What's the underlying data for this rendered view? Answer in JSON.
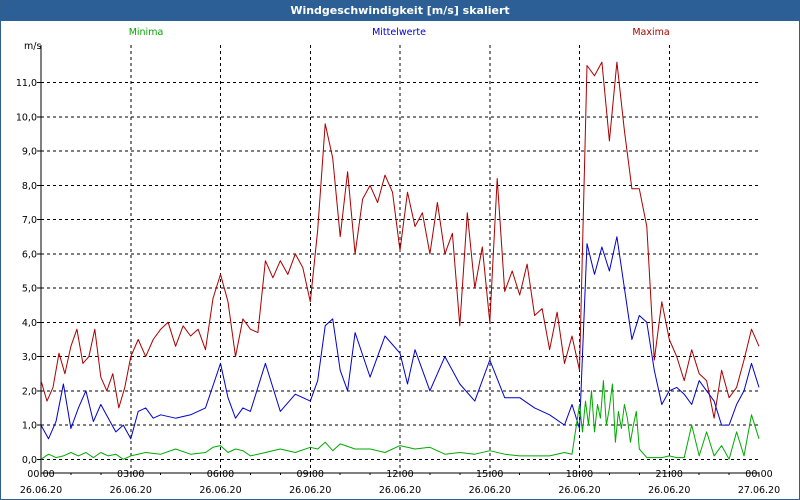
{
  "window": {
    "title": "Windgeschwindigkeit [m/s] skaliert"
  },
  "chart_data": {
    "type": "line",
    "title": "Windgeschwindigkeit [m/s] skaliert",
    "ylabel": "m/s",
    "xlabel": "",
    "ylim": [
      -0.4,
      12.1
    ],
    "xlim": [
      0,
      24
    ],
    "yticks": [
      0.0,
      1.0,
      2.0,
      3.0,
      4.0,
      5.0,
      6.0,
      7.0,
      8.0,
      9.0,
      10.0,
      11.0
    ],
    "ytick_labels": [
      "0,0",
      "1,0",
      "2,0",
      "3,0",
      "4,0",
      "5,0",
      "6,0",
      "7,0",
      "8,0",
      "9,0",
      "10,0",
      "11,0"
    ],
    "xticks": [
      {
        "hour": 0,
        "time": "00:00",
        "date": "26.06.20"
      },
      {
        "hour": 3,
        "time": "03:00",
        "date": "26.06.20"
      },
      {
        "hour": 6,
        "time": "06:00",
        "date": "26.06.20"
      },
      {
        "hour": 9,
        "time": "09:00",
        "date": "26.06.20"
      },
      {
        "hour": 12,
        "time": "12:00",
        "date": "26.06.20"
      },
      {
        "hour": 15,
        "time": "15:00",
        "date": "26.06.20"
      },
      {
        "hour": 18,
        "time": "18:00",
        "date": "26.06.20"
      },
      {
        "hour": 21,
        "time": "21:00",
        "date": "26.06.20"
      },
      {
        "hour": 24,
        "time": "00:00",
        "date": "27.06.20"
      }
    ],
    "grid": true,
    "legend_position": "top",
    "series": [
      {
        "name": "Minima",
        "color": "#00aa00",
        "x": [
          0.0,
          0.25,
          0.5,
          0.75,
          1.0,
          1.25,
          1.5,
          1.75,
          2.0,
          2.25,
          2.5,
          2.75,
          3.0,
          3.5,
          4.0,
          4.5,
          5.0,
          5.5,
          5.75,
          6.0,
          6.25,
          6.5,
          6.75,
          7.0,
          7.5,
          8.0,
          8.5,
          9.0,
          9.25,
          9.5,
          9.75,
          10.0,
          10.5,
          11.0,
          11.5,
          12.0,
          12.5,
          13.0,
          13.5,
          14.0,
          14.5,
          15.0,
          15.5,
          16.0,
          16.5,
          17.0,
          17.5,
          17.75,
          18.0,
          18.1,
          18.2,
          18.3,
          18.4,
          18.5,
          18.6,
          18.7,
          18.8,
          18.9,
          19.0,
          19.1,
          19.2,
          19.3,
          19.4,
          19.5,
          19.6,
          19.7,
          19.8,
          19.9,
          20.0,
          20.25,
          20.5,
          20.75,
          21.0,
          21.25,
          21.5,
          21.75,
          22.0,
          22.25,
          22.5,
          22.75,
          23.0,
          23.25,
          23.5,
          23.75,
          24.0
        ],
        "values": [
          0.0,
          0.15,
          0.05,
          0.1,
          0.2,
          0.1,
          0.2,
          0.05,
          0.2,
          0.1,
          0.15,
          0.0,
          0.1,
          0.2,
          0.15,
          0.3,
          0.15,
          0.2,
          0.35,
          0.4,
          0.2,
          0.3,
          0.25,
          0.1,
          0.2,
          0.3,
          0.2,
          0.35,
          0.3,
          0.5,
          0.25,
          0.45,
          0.3,
          0.3,
          0.2,
          0.4,
          0.3,
          0.35,
          0.15,
          0.2,
          0.15,
          0.25,
          0.15,
          0.1,
          0.1,
          0.1,
          0.2,
          0.15,
          1.6,
          0.8,
          1.7,
          1.0,
          2.0,
          0.8,
          1.6,
          1.2,
          2.3,
          1.0,
          1.5,
          2.2,
          0.5,
          1.4,
          0.9,
          1.6,
          1.2,
          0.5,
          1.0,
          1.4,
          0.3,
          0.05,
          0.05,
          0.05,
          0.1,
          0.05,
          0.05,
          1.0,
          0.1,
          0.8,
          0.1,
          0.4,
          0.0,
          0.8,
          0.1,
          1.3,
          0.6
        ]
      },
      {
        "name": "Mittelwerte",
        "color": "#0000cc",
        "x": [
          0.0,
          0.25,
          0.5,
          0.75,
          1.0,
          1.25,
          1.5,
          1.75,
          2.0,
          2.25,
          2.5,
          2.75,
          3.0,
          3.25,
          3.5,
          3.75,
          4.0,
          4.5,
          5.0,
          5.5,
          6.0,
          6.25,
          6.5,
          6.75,
          7.0,
          7.5,
          8.0,
          8.5,
          9.0,
          9.25,
          9.5,
          9.75,
          10.0,
          10.25,
          10.5,
          11.0,
          11.5,
          12.0,
          12.25,
          12.5,
          13.0,
          13.5,
          14.0,
          14.5,
          15.0,
          15.5,
          16.0,
          16.5,
          17.0,
          17.5,
          17.75,
          18.0,
          18.25,
          18.5,
          18.75,
          19.0,
          19.25,
          19.5,
          19.75,
          20.0,
          20.25,
          20.5,
          20.75,
          21.0,
          21.25,
          21.5,
          21.75,
          22.0,
          22.25,
          22.5,
          22.75,
          23.0,
          23.25,
          23.5,
          23.75,
          24.0
        ],
        "values": [
          1.0,
          0.6,
          1.1,
          2.2,
          0.9,
          1.5,
          2.0,
          1.1,
          1.6,
          1.2,
          0.8,
          1.0,
          0.6,
          1.4,
          1.5,
          1.2,
          1.3,
          1.2,
          1.3,
          1.5,
          2.8,
          1.8,
          1.2,
          1.5,
          1.4,
          2.8,
          1.4,
          1.9,
          1.7,
          2.3,
          3.9,
          4.1,
          2.6,
          2.0,
          3.7,
          2.4,
          3.6,
          3.1,
          2.2,
          3.2,
          2.0,
          3.0,
          2.2,
          1.7,
          2.9,
          1.8,
          1.8,
          1.5,
          1.3,
          1.0,
          1.6,
          0.9,
          6.3,
          5.4,
          6.2,
          5.5,
          6.5,
          5.0,
          3.5,
          4.2,
          4.0,
          2.6,
          1.6,
          2.0,
          2.1,
          1.9,
          1.6,
          2.3,
          2.0,
          1.7,
          1.0,
          1.0,
          1.6,
          2.0,
          2.8,
          2.1
        ]
      },
      {
        "name": "Maxima",
        "color": "#aa0000",
        "x": [
          0.0,
          0.2,
          0.4,
          0.6,
          0.8,
          1.0,
          1.2,
          1.4,
          1.6,
          1.8,
          2.0,
          2.2,
          2.4,
          2.6,
          2.8,
          3.0,
          3.25,
          3.5,
          3.75,
          4.0,
          4.25,
          4.5,
          4.75,
          5.0,
          5.25,
          5.5,
          5.75,
          6.0,
          6.25,
          6.5,
          6.75,
          7.0,
          7.25,
          7.5,
          7.75,
          8.0,
          8.25,
          8.5,
          8.75,
          9.0,
          9.25,
          9.5,
          9.75,
          10.0,
          10.25,
          10.5,
          10.75,
          11.0,
          11.25,
          11.5,
          11.75,
          12.0,
          12.25,
          12.5,
          12.75,
          13.0,
          13.25,
          13.5,
          13.75,
          14.0,
          14.25,
          14.5,
          14.75,
          15.0,
          15.25,
          15.5,
          15.75,
          16.0,
          16.25,
          16.5,
          16.75,
          17.0,
          17.25,
          17.5,
          17.75,
          18.0,
          18.25,
          18.5,
          18.75,
          19.0,
          19.25,
          19.5,
          19.75,
          20.0,
          20.25,
          20.5,
          20.75,
          21.0,
          21.25,
          21.5,
          21.75,
          22.0,
          22.25,
          22.5,
          22.75,
          23.0,
          23.25,
          23.5,
          23.75,
          24.0
        ],
        "values": [
          2.3,
          1.7,
          2.1,
          3.1,
          2.5,
          3.3,
          3.8,
          2.8,
          3.0,
          3.8,
          2.4,
          2.0,
          2.5,
          1.5,
          2.1,
          3.0,
          3.5,
          3.0,
          3.5,
          3.8,
          4.0,
          3.3,
          3.9,
          3.6,
          3.8,
          3.2,
          4.7,
          5.4,
          4.6,
          3.0,
          4.1,
          3.8,
          3.7,
          5.8,
          5.3,
          5.8,
          5.4,
          6.0,
          5.6,
          4.6,
          6.7,
          9.8,
          8.8,
          6.5,
          8.4,
          6.0,
          7.6,
          8.0,
          7.5,
          8.3,
          7.8,
          6.1,
          7.8,
          6.8,
          7.2,
          6.0,
          7.5,
          6.0,
          6.6,
          3.9,
          7.2,
          5.0,
          6.2,
          4.0,
          8.2,
          4.9,
          5.5,
          4.8,
          5.7,
          4.2,
          4.4,
          3.2,
          4.3,
          2.8,
          3.6,
          2.6,
          11.5,
          11.2,
          11.6,
          9.3,
          11.6,
          9.6,
          7.9,
          7.9,
          6.8,
          2.9,
          4.6,
          3.5,
          3.0,
          2.3,
          3.2,
          2.5,
          2.3,
          1.2,
          2.6,
          1.8,
          2.1,
          2.9,
          3.8,
          3.3
        ]
      }
    ]
  }
}
